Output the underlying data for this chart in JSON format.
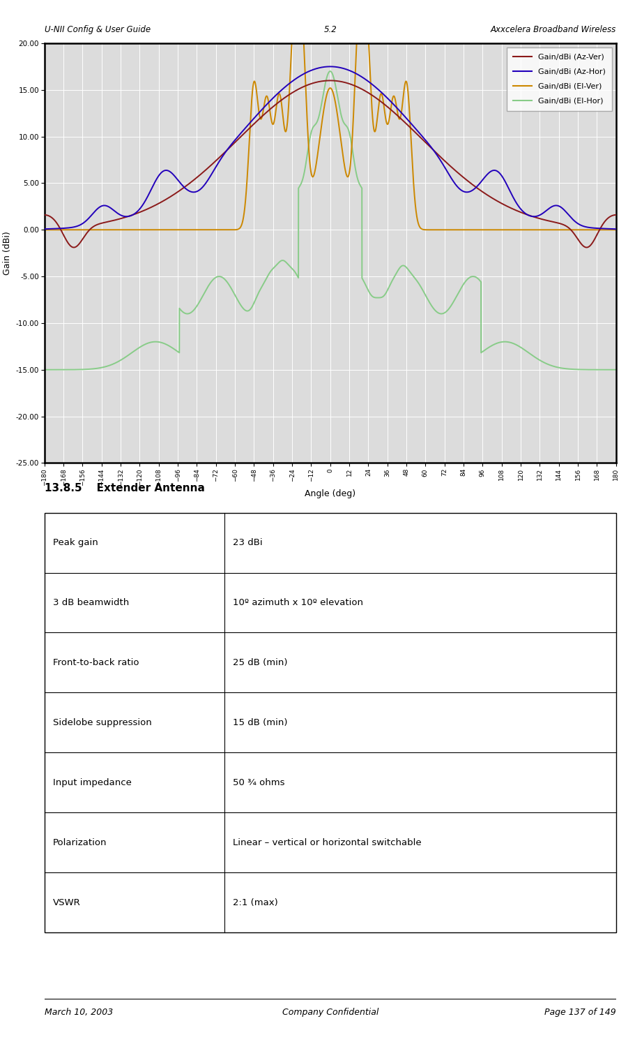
{
  "header_left": "U-NII Config & User Guide",
  "header_center": "5.2",
  "header_right": "Axxcelera Broadband Wireless",
  "footer_left": "March 10, 2003",
  "footer_center": "Company Confidential",
  "footer_right": "Page 137 of 149",
  "chart_ylabel": "Gain (dBi)",
  "chart_xlabel": "Angle (deg)",
  "ylim": [
    -25,
    20
  ],
  "xlim": [
    -180,
    180
  ],
  "yticks": [
    20.0,
    15.0,
    10.0,
    5.0,
    0.0,
    -5.0,
    -10.0,
    -15.0,
    -20.0,
    -25.0
  ],
  "xticks": [
    -180,
    -168,
    -156,
    -144,
    -132,
    -120,
    -108,
    -96,
    -84,
    -72,
    -60,
    -48,
    -36,
    -24,
    -12,
    0,
    12,
    24,
    36,
    48,
    60,
    72,
    84,
    96,
    108,
    120,
    132,
    144,
    156,
    168,
    180
  ],
  "legend_entries": [
    "Gain/dBi (Az-Ver)",
    "Gain/dBi (Az-Hor)",
    "Gain/dBi (El-Ver)",
    "Gain/dBi (El-Hor)"
  ],
  "legend_colors": [
    "#8B1A1A",
    "#2200BB",
    "#CC8800",
    "#88CC88"
  ],
  "chart_bg": "#DCDCDC",
  "table_rows": [
    [
      "Peak gain",
      "23 dBi"
    ],
    [
      "3 dB beamwidth",
      "10º azimuth x 10º elevation"
    ],
    [
      "Front-to-back ratio",
      "25 dB (min)"
    ],
    [
      "Sidelobe suppression",
      "15 dB (min)"
    ],
    [
      "Input impedance",
      "50 ¾ ohms"
    ],
    [
      "Polarization",
      "Linear – vertical or horizontal switchable"
    ],
    [
      "VSWR",
      "2:1 (max)"
    ]
  ]
}
